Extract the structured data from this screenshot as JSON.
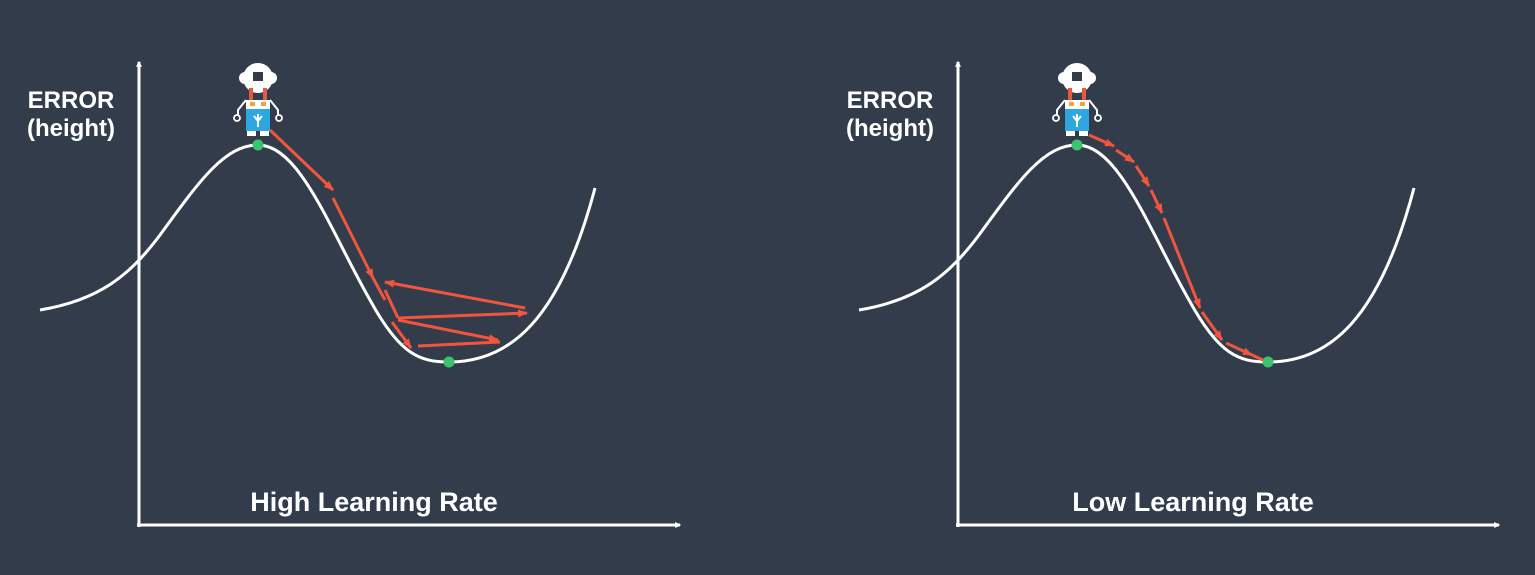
{
  "colors": {
    "background": "#323c4b",
    "axis": "#ffffff",
    "curve": "#ffffff",
    "arrow": "#f2553d",
    "point": "#3cc36e",
    "robot_body": "#2ea6df",
    "robot_head": "#ffffff",
    "robot_accent": "#e8583d"
  },
  "panels": [
    {
      "id": "high",
      "y_axis_label_line1": "ERROR",
      "y_axis_label_line2": "(height)",
      "caption": "High Learning Rate",
      "icon": "robot-icon"
    },
    {
      "id": "low",
      "y_axis_label_line1": "ERROR",
      "y_axis_label_line2": "(height)",
      "caption": "Low Learning Rate",
      "icon": "robot-icon"
    }
  ]
}
